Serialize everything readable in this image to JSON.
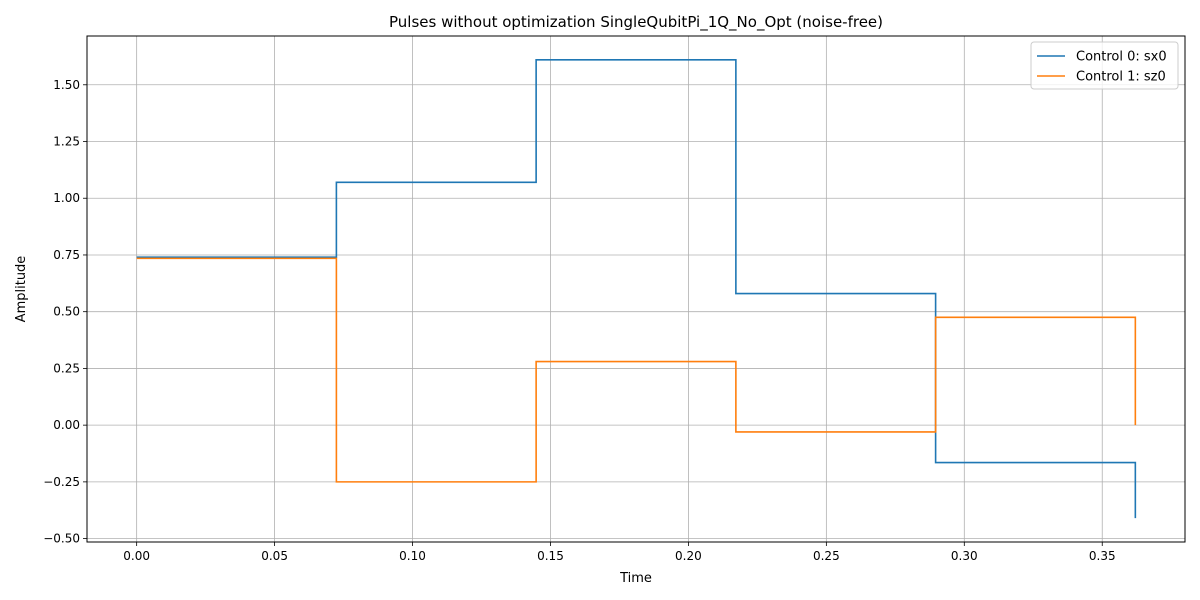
{
  "chart_data": {
    "type": "line",
    "step": "post",
    "title": "Pulses without optimization SingleQubitPi_1Q_No_Opt (noise-free)",
    "xlabel": "Time",
    "ylabel": "Amplitude",
    "xlim": [
      -0.018,
      0.38
    ],
    "ylim": [
      -0.515,
      1.715
    ],
    "xticks": [
      0.0,
      0.05,
      0.1,
      0.15,
      0.2,
      0.25,
      0.3,
      0.35
    ],
    "xtick_labels": [
      "0.00",
      "0.05",
      "0.10",
      "0.15",
      "0.20",
      "0.25",
      "0.30",
      "0.35"
    ],
    "yticks": [
      -0.5,
      -0.25,
      0.0,
      0.25,
      0.5,
      0.75,
      1.0,
      1.25,
      1.5
    ],
    "ytick_labels": [
      "−0.50",
      "−0.25",
      "0.00",
      "0.25",
      "0.50",
      "0.75",
      "1.00",
      "1.25",
      "1.50"
    ],
    "grid": true,
    "legend_position": "top-right",
    "x": [
      0.0,
      0.0724,
      0.1448,
      0.2172,
      0.2896,
      0.362
    ],
    "series": [
      {
        "name": "Control 0: sx0",
        "color": "#1f77b4",
        "values": [
          0.74,
          1.07,
          1.61,
          0.58,
          -0.165,
          -0.41
        ]
      },
      {
        "name": "Control 1: sz0",
        "color": "#ff7f0e",
        "values": [
          0.735,
          -0.25,
          0.28,
          -0.03,
          0.475,
          0.0
        ]
      }
    ]
  }
}
